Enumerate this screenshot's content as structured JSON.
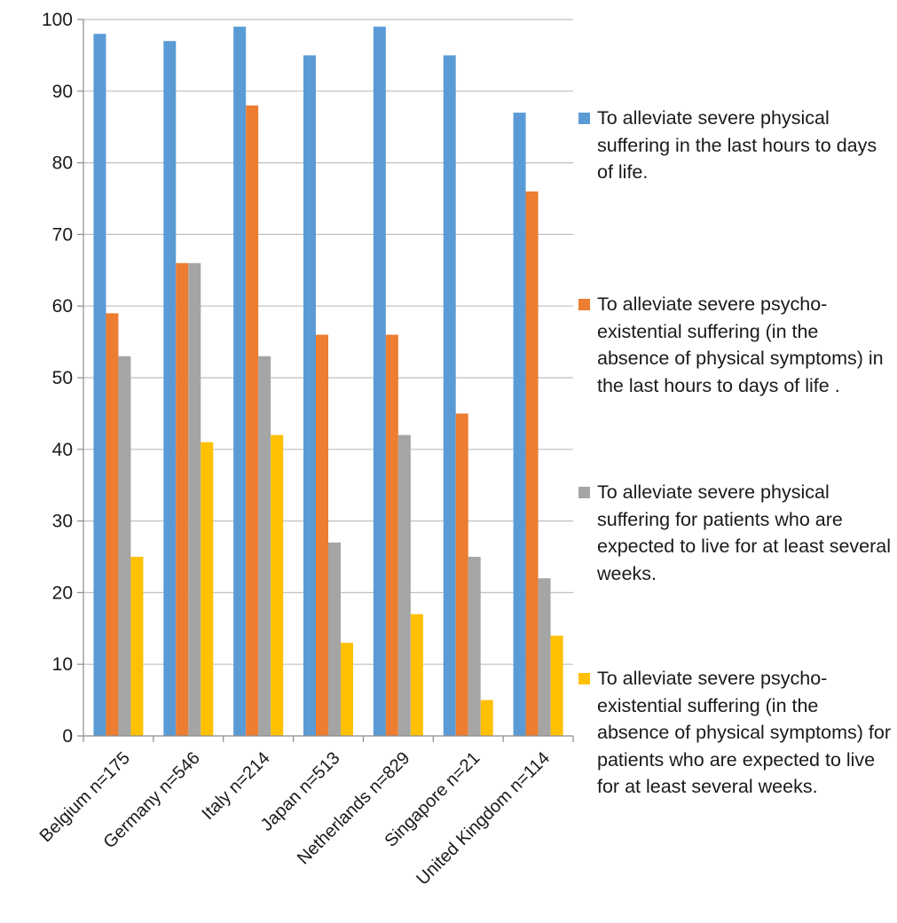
{
  "chart_data": {
    "type": "bar",
    "categories": [
      "Belgium  n=175",
      "Germany n=546",
      "Italy n=214",
      "Japan n=513",
      "Netherlands n=829",
      "Singapore n=21",
      "United Kingdom n=114"
    ],
    "series": [
      {
        "name": "To alleviate severe physical suffering in the last hours to days of life.",
        "color": "#5b9bd5",
        "values": [
          98,
          97,
          99,
          95,
          99,
          95,
          87
        ]
      },
      {
        "name": "To alleviate severe psycho-existential suffering (in the absence of physical symptoms) in the last hours to days of life .",
        "color": "#ed7d31",
        "values": [
          59,
          66,
          88,
          56,
          56,
          45,
          76
        ]
      },
      {
        "name": "To alleviate severe physical suffering for patients who are expected to live for at least several weeks.",
        "color": "#a5a5a5",
        "values": [
          53,
          66,
          53,
          27,
          42,
          25,
          22
        ]
      },
      {
        "name": "To alleviate severe psycho-existential suffering (in the absence of physical symptoms) for patients who are expected to live for at least several weeks.",
        "color": "#ffc000",
        "values": [
          25,
          41,
          42,
          13,
          17,
          5,
          14
        ]
      }
    ],
    "yticks": [
      "0",
      "10",
      "20",
      "30",
      "40",
      "50",
      "60",
      "70",
      "80",
      "90",
      "100"
    ],
    "ylim": [
      0,
      100
    ],
    "grid": true,
    "legend_position": "right",
    "title": "",
    "xlabel": "",
    "ylabel": ""
  }
}
